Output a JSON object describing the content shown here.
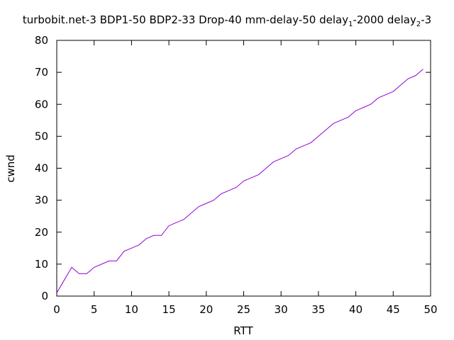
{
  "chart_data": {
    "type": "line",
    "title_parts": [
      "turbobit.net-3 BDP1-50 BDP2-33 Drop-40 mm-delay-50 delay",
      "1",
      "-2000 delay",
      "2",
      "-3"
    ],
    "xlabel": "RTT",
    "ylabel": "cwnd",
    "xlim": [
      0,
      50
    ],
    "ylim": [
      0,
      80
    ],
    "xticks": [
      0,
      5,
      10,
      15,
      20,
      25,
      30,
      35,
      40,
      45,
      50
    ],
    "yticks": [
      0,
      10,
      20,
      30,
      40,
      50,
      60,
      70,
      80
    ],
    "grid": false,
    "series_color": "#9400d3",
    "x": [
      0,
      1,
      2,
      3,
      4,
      5,
      6,
      7,
      8,
      9,
      10,
      11,
      12,
      13,
      14,
      15,
      16,
      17,
      18,
      19,
      20,
      21,
      22,
      23,
      24,
      25,
      26,
      27,
      28,
      29,
      30,
      31,
      32,
      33,
      34,
      35,
      36,
      37,
      38,
      39,
      40,
      41,
      42,
      43,
      44,
      45,
      46,
      47,
      48,
      49
    ],
    "y": [
      1,
      5,
      9,
      7,
      7,
      9,
      10,
      11,
      11,
      14,
      15,
      16,
      18,
      19,
      19,
      22,
      23,
      24,
      26,
      28,
      29,
      30,
      32,
      33,
      34,
      36,
      37,
      38,
      40,
      42,
      43,
      44,
      46,
      47,
      48,
      50,
      52,
      54,
      55,
      56,
      58,
      59,
      60,
      62,
      63,
      64,
      66,
      68,
      69,
      71
    ]
  }
}
